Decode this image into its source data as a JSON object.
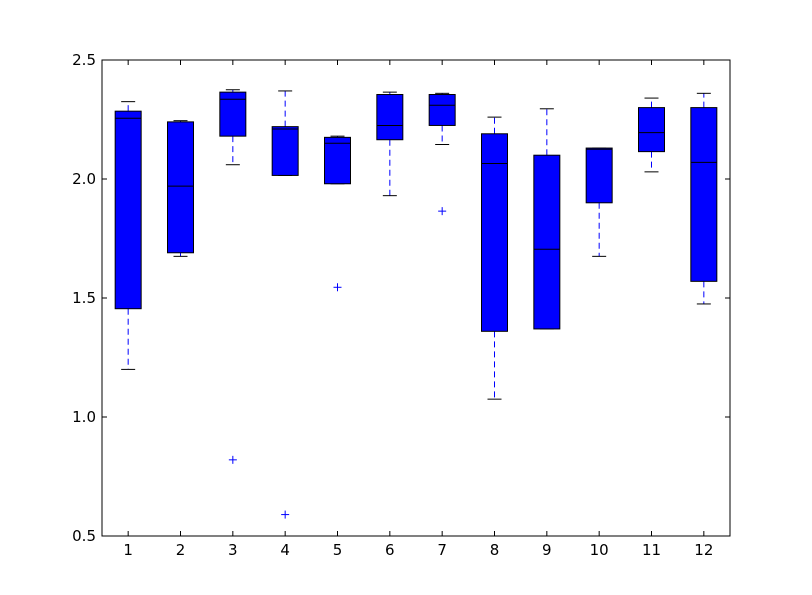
{
  "chart_data": {
    "type": "box",
    "title": "",
    "xlabel": "",
    "ylabel": "",
    "ylim": [
      0.5,
      2.5
    ],
    "y_ticks": [
      "0.5",
      "1.0",
      "1.5",
      "2.0",
      "2.5"
    ],
    "categories": [
      "1",
      "2",
      "3",
      "4",
      "5",
      "6",
      "7",
      "8",
      "9",
      "10",
      "11",
      "12"
    ],
    "box_color": "#0000ff",
    "whisker_color": "#0000ff",
    "line_color": "#000000",
    "flier_marker": "+",
    "boxes": [
      {
        "label": "1",
        "q1": 1.455,
        "median": 2.255,
        "q3": 2.285,
        "whisker_low": 1.2,
        "whisker_high": 2.325,
        "fliers": []
      },
      {
        "label": "2",
        "q1": 1.69,
        "median": 1.97,
        "q3": 2.24,
        "whisker_low": 1.675,
        "whisker_high": 2.245,
        "fliers": []
      },
      {
        "label": "3",
        "q1": 2.18,
        "median": 2.335,
        "q3": 2.365,
        "whisker_low": 2.06,
        "whisker_high": 2.375,
        "fliers": [
          0.82
        ]
      },
      {
        "label": "4",
        "q1": 2.015,
        "median": 2.21,
        "q3": 2.22,
        "whisker_low": 2.015,
        "whisker_high": 2.37,
        "fliers": [
          0.59
        ]
      },
      {
        "label": "5",
        "q1": 1.98,
        "median": 2.15,
        "q3": 2.175,
        "whisker_low": 1.98,
        "whisker_high": 2.18,
        "fliers": [
          1.545
        ]
      },
      {
        "label": "6",
        "q1": 2.165,
        "median": 2.225,
        "q3": 2.355,
        "whisker_low": 1.93,
        "whisker_high": 2.365,
        "fliers": []
      },
      {
        "label": "7",
        "q1": 2.225,
        "median": 2.31,
        "q3": 2.355,
        "whisker_low": 2.145,
        "whisker_high": 2.36,
        "fliers": [
          1.865
        ]
      },
      {
        "label": "8",
        "q1": 1.36,
        "median": 2.065,
        "q3": 2.19,
        "whisker_low": 1.075,
        "whisker_high": 2.26,
        "fliers": []
      },
      {
        "label": "9",
        "q1": 1.37,
        "median": 1.705,
        "q3": 2.1,
        "whisker_low": 1.37,
        "whisker_high": 2.295,
        "fliers": []
      },
      {
        "label": "10",
        "q1": 1.9,
        "median": 2.125,
        "q3": 2.13,
        "whisker_low": 1.675,
        "whisker_high": 2.13,
        "fliers": []
      },
      {
        "label": "11",
        "q1": 2.115,
        "median": 2.195,
        "q3": 2.3,
        "whisker_low": 2.03,
        "whisker_high": 2.34,
        "fliers": []
      },
      {
        "label": "12",
        "q1": 1.57,
        "median": 2.07,
        "q3": 2.3,
        "whisker_low": 1.475,
        "whisker_high": 2.36,
        "fliers": []
      }
    ]
  }
}
